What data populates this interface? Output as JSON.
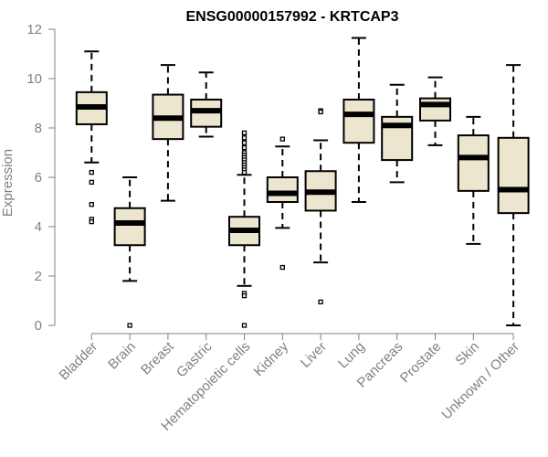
{
  "chart_data": {
    "type": "box",
    "title": "ENSG00000157992 - KRTCAP3",
    "xlabel": "",
    "ylabel": "Expression",
    "ylim": [
      0,
      12
    ],
    "yticks": [
      0,
      2,
      4,
      6,
      8,
      10,
      12
    ],
    "grid": false,
    "box_fill": "#EDE6CF",
    "outline_color": "#000000",
    "axis_color": "#808080",
    "categories": [
      "Bladder",
      "Brain",
      "Breast",
      "Gastric",
      "Hematopoietic cells",
      "Kidney",
      "Liver",
      "Lung",
      "Pancreas",
      "Prostate",
      "Skin",
      "Unknown / Other"
    ],
    "boxes": [
      {
        "name": "Bladder",
        "min": 6.6,
        "q1": 8.15,
        "median": 8.85,
        "q3": 9.45,
        "max": 11.1,
        "outliers": [
          6.2,
          5.8,
          4.9,
          4.3,
          4.2
        ]
      },
      {
        "name": "Brain",
        "min": 1.8,
        "q1": 3.25,
        "median": 4.15,
        "q3": 4.75,
        "max": 6.0,
        "outliers": [
          0.0
        ]
      },
      {
        "name": "Breast",
        "min": 5.05,
        "q1": 7.55,
        "median": 8.4,
        "q3": 9.35,
        "max": 10.55,
        "outliers": []
      },
      {
        "name": "Gastric",
        "min": 7.65,
        "q1": 8.05,
        "median": 8.7,
        "q3": 9.15,
        "max": 10.25,
        "outliers": []
      },
      {
        "name": "Hematopoietic cells",
        "min": 1.6,
        "q1": 3.25,
        "median": 3.85,
        "q3": 4.4,
        "max": 6.1,
        "outliers": [
          7.8,
          7.6,
          7.4,
          7.2,
          7.0,
          6.9,
          6.8,
          6.7,
          6.6,
          6.5,
          6.4,
          6.3,
          6.2,
          1.3,
          1.2,
          0.0
        ]
      },
      {
        "name": "Kidney",
        "min": 3.95,
        "q1": 5.0,
        "median": 5.35,
        "q3": 6.0,
        "max": 7.25,
        "outliers": [
          7.55,
          2.35
        ]
      },
      {
        "name": "Liver",
        "min": 2.55,
        "q1": 4.65,
        "median": 5.4,
        "q3": 6.25,
        "max": 7.5,
        "outliers": [
          8.7,
          8.65,
          0.95
        ]
      },
      {
        "name": "Lung",
        "min": 5.0,
        "q1": 7.4,
        "median": 8.55,
        "q3": 9.15,
        "max": 11.65,
        "outliers": []
      },
      {
        "name": "Pancreas",
        "min": 5.8,
        "q1": 6.7,
        "median": 8.1,
        "q3": 8.45,
        "max": 9.75,
        "outliers": []
      },
      {
        "name": "Prostate",
        "min": 7.3,
        "q1": 8.3,
        "median": 8.95,
        "q3": 9.2,
        "max": 10.05,
        "outliers": []
      },
      {
        "name": "Skin",
        "min": 3.3,
        "q1": 5.45,
        "median": 6.8,
        "q3": 7.7,
        "max": 8.45,
        "outliers": []
      },
      {
        "name": "Unknown / Other",
        "min": 0.0,
        "q1": 4.55,
        "median": 5.5,
        "q3": 7.6,
        "max": 10.55,
        "outliers": []
      }
    ]
  }
}
